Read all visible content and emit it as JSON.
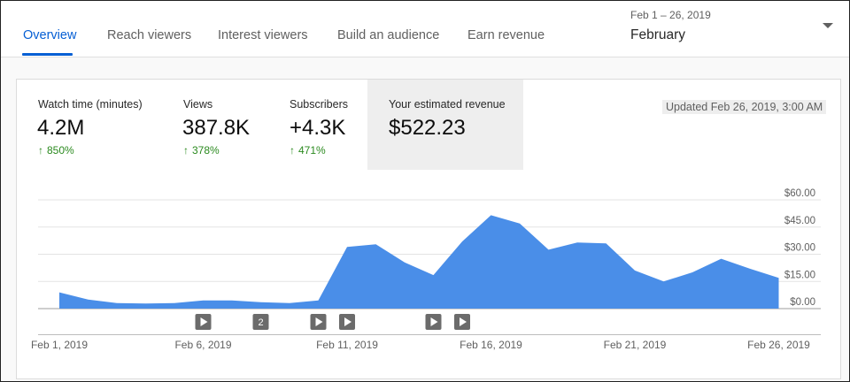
{
  "tabs": [
    {
      "label": "Overview",
      "active": true
    },
    {
      "label": "Reach viewers",
      "active": false
    },
    {
      "label": "Interest viewers",
      "active": false
    },
    {
      "label": "Build an audience",
      "active": false
    },
    {
      "label": "Earn revenue",
      "active": false
    }
  ],
  "date_range": {
    "subtitle": "Feb 1 – 26, 2019",
    "label": "February"
  },
  "metrics": [
    {
      "label": "Watch time (minutes)",
      "value": "4.2M",
      "delta": "850%"
    },
    {
      "label": "Views",
      "value": "387.8K",
      "delta": "378%"
    },
    {
      "label": "Subscribers",
      "value": "+4.3K",
      "delta": "471%"
    },
    {
      "label": "Your estimated revenue",
      "value": "$522.23",
      "delta": ""
    }
  ],
  "updated": "Updated Feb 26, 2019, 3:00 AM",
  "colors": {
    "accent": "#065fd4",
    "area": "#4a8ee8",
    "positive": "#2b8a1f"
  },
  "icons": {
    "delta": "arrow-up-icon",
    "marker": "play-icon"
  },
  "chart_data": {
    "type": "area",
    "ylabel": "",
    "ylim": [
      0,
      60
    ],
    "y_ticks": [
      "$60.00",
      "$45.00",
      "$30.00",
      "$15.00",
      "$0.00"
    ],
    "x_tick_labels": [
      "Feb 1, 2019",
      "Feb 6, 2019",
      "Feb 11, 2019",
      "Feb 16, 2019",
      "Feb 21, 2019",
      "Feb 26, 2019"
    ],
    "x": [
      "2019-02-01",
      "2019-02-02",
      "2019-02-03",
      "2019-02-04",
      "2019-02-05",
      "2019-02-06",
      "2019-02-07",
      "2019-02-08",
      "2019-02-09",
      "2019-02-10",
      "2019-02-11",
      "2019-02-12",
      "2019-02-13",
      "2019-02-14",
      "2019-02-15",
      "2019-02-16",
      "2019-02-17",
      "2019-02-18",
      "2019-02-19",
      "2019-02-20",
      "2019-02-21",
      "2019-02-22",
      "2019-02-23",
      "2019-02-24",
      "2019-02-25",
      "2019-02-26"
    ],
    "values": [
      9,
      5,
      3,
      2.8,
      3,
      4.5,
      4.5,
      3.5,
      3,
      4.5,
      34,
      35.5,
      25.5,
      18.5,
      37,
      51.5,
      47,
      32.5,
      36.5,
      36,
      21,
      15,
      20,
      27.5,
      22,
      17
    ],
    "markers": [
      {
        "date": "2019-02-06",
        "label": ""
      },
      {
        "date": "2019-02-08",
        "label": "2"
      },
      {
        "date": "2019-02-10",
        "label": ""
      },
      {
        "date": "2019-02-11",
        "label": ""
      },
      {
        "date": "2019-02-14",
        "label": ""
      },
      {
        "date": "2019-02-15",
        "label": ""
      }
    ]
  }
}
